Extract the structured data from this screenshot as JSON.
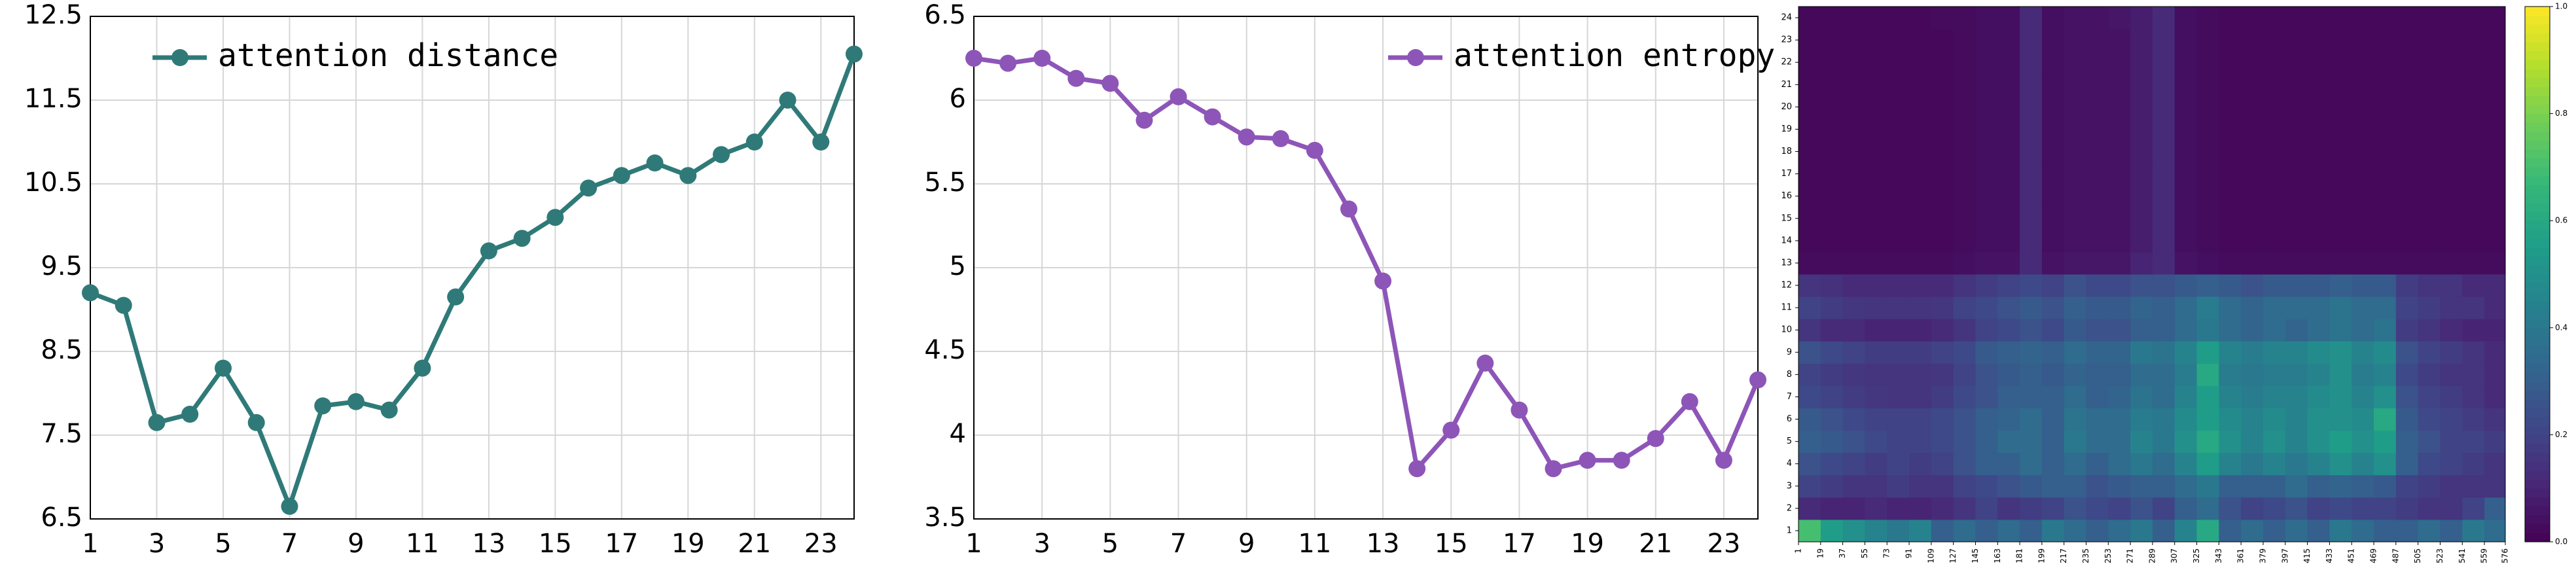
{
  "chart_data": [
    {
      "type": "line",
      "x": [
        1,
        2,
        3,
        4,
        5,
        6,
        7,
        8,
        9,
        10,
        11,
        12,
        13,
        14,
        15,
        16,
        17,
        18,
        19,
        20,
        21,
        22,
        23,
        24
      ],
      "series": [
        {
          "name": "attention distance",
          "color": "#2f7a78",
          "values": [
            9.2,
            9.05,
            7.65,
            7.75,
            8.3,
            7.65,
            6.65,
            7.85,
            7.9,
            7.8,
            8.3,
            9.15,
            9.7,
            9.85,
            10.1,
            10.45,
            10.6,
            10.75,
            10.6,
            10.85,
            11.0,
            11.5,
            11.0,
            12.05
          ]
        }
      ],
      "xlim": [
        1,
        24
      ],
      "xticks": [
        1,
        3,
        5,
        7,
        9,
        11,
        13,
        15,
        17,
        19,
        21,
        23
      ],
      "ylim": [
        6.5,
        12.5
      ],
      "yticks": [
        6.5,
        7.5,
        8.5,
        9.5,
        10.5,
        11.5,
        12.5
      ],
      "grid": true,
      "legend": "upper left"
    },
    {
      "type": "line",
      "x": [
        1,
        2,
        3,
        4,
        5,
        6,
        7,
        8,
        9,
        10,
        11,
        12,
        13,
        14,
        15,
        16,
        17,
        18,
        19,
        20,
        21,
        22,
        23,
        24
      ],
      "series": [
        {
          "name": "attention entropy",
          "color": "#8e55b8",
          "values": [
            6.25,
            6.22,
            6.25,
            6.13,
            6.1,
            5.88,
            6.02,
            5.9,
            5.78,
            5.77,
            5.7,
            5.35,
            4.92,
            3.8,
            4.03,
            4.43,
            4.15,
            3.8,
            3.85,
            3.85,
            3.98,
            4.2,
            3.85,
            4.33
          ]
        }
      ],
      "xlim": [
        1,
        24
      ],
      "xticks": [
        1,
        3,
        5,
        7,
        9,
        11,
        13,
        15,
        17,
        19,
        21,
        23
      ],
      "ylim": [
        3.5,
        6.5
      ],
      "yticks": [
        3.5,
        4.0,
        4.5,
        5.0,
        5.5,
        6.0,
        6.5
      ],
      "grid": true,
      "legend": "upper right"
    },
    {
      "type": "heatmap",
      "colormap": "viridis",
      "clim": [
        0,
        1
      ],
      "cticks": [
        {
          "value": 0,
          "label": "0.0"
        },
        {
          "value": 0.2,
          "label": "0.2"
        },
        {
          "value": 0.4,
          "label": "0.4"
        },
        {
          "value": 0.6,
          "label": "0.6"
        },
        {
          "value": 0.8,
          "label": "0.8"
        },
        {
          "value": 1,
          "label": "1.0"
        }
      ],
      "xlim": [
        1,
        576
      ],
      "xticks": [
        1,
        19,
        37,
        55,
        73,
        91,
        109,
        127,
        145,
        163,
        181,
        199,
        217,
        235,
        253,
        271,
        289,
        307,
        325,
        343,
        361,
        379,
        397,
        415,
        433,
        451,
        469,
        487,
        505,
        523,
        541,
        559,
        576
      ],
      "yticks": [
        1,
        2,
        3,
        4,
        5,
        6,
        7,
        8,
        9,
        10,
        11,
        12,
        13,
        14,
        15,
        16,
        17,
        18,
        19,
        20,
        21,
        22,
        23,
        24
      ],
      "values": [
        [
          0.7,
          0.55,
          0.5,
          0.45,
          0.4,
          0.45,
          0.3,
          0.35,
          0.3,
          0.35,
          0.3,
          0.4,
          0.35,
          0.3,
          0.35,
          0.4,
          0.3,
          0.45,
          0.6,
          0.3,
          0.35,
          0.3,
          0.35,
          0.3,
          0.4,
          0.35,
          0.3,
          0.3,
          0.35,
          0.3,
          0.4,
          0.35
        ],
        [
          0.12,
          0.1,
          0.1,
          0.12,
          0.1,
          0.1,
          0.12,
          0.15,
          0.2,
          0.15,
          0.18,
          0.2,
          0.25,
          0.22,
          0.2,
          0.25,
          0.2,
          0.3,
          0.35,
          0.25,
          0.2,
          0.22,
          0.25,
          0.2,
          0.22,
          0.2,
          0.2,
          0.18,
          0.15,
          0.15,
          0.2,
          0.3
        ],
        [
          0.2,
          0.18,
          0.15,
          0.15,
          0.18,
          0.15,
          0.15,
          0.2,
          0.22,
          0.25,
          0.28,
          0.3,
          0.3,
          0.25,
          0.28,
          0.3,
          0.3,
          0.35,
          0.4,
          0.3,
          0.3,
          0.3,
          0.35,
          0.3,
          0.32,
          0.3,
          0.28,
          0.2,
          0.18,
          0.15,
          0.15,
          0.15
        ],
        [
          0.25,
          0.22,
          0.2,
          0.18,
          0.2,
          0.18,
          0.2,
          0.25,
          0.3,
          0.3,
          0.35,
          0.3,
          0.35,
          0.3,
          0.35,
          0.4,
          0.35,
          0.45,
          0.55,
          0.45,
          0.4,
          0.45,
          0.4,
          0.45,
          0.5,
          0.45,
          0.5,
          0.3,
          0.22,
          0.2,
          0.18,
          0.15
        ],
        [
          0.3,
          0.28,
          0.25,
          0.22,
          0.2,
          0.2,
          0.22,
          0.25,
          0.3,
          0.35,
          0.35,
          0.3,
          0.4,
          0.35,
          0.35,
          0.45,
          0.4,
          0.5,
          0.6,
          0.5,
          0.45,
          0.5,
          0.45,
          0.5,
          0.55,
          0.5,
          0.55,
          0.3,
          0.25,
          0.2,
          0.2,
          0.18
        ],
        [
          0.28,
          0.25,
          0.22,
          0.2,
          0.2,
          0.2,
          0.22,
          0.25,
          0.3,
          0.32,
          0.35,
          0.3,
          0.38,
          0.35,
          0.35,
          0.42,
          0.4,
          0.48,
          0.55,
          0.48,
          0.45,
          0.48,
          0.45,
          0.5,
          0.5,
          0.48,
          0.6,
          0.28,
          0.22,
          0.2,
          0.18,
          0.15
        ],
        [
          0.22,
          0.2,
          0.18,
          0.16,
          0.15,
          0.15,
          0.18,
          0.22,
          0.25,
          0.3,
          0.3,
          0.3,
          0.35,
          0.3,
          0.32,
          0.38,
          0.35,
          0.45,
          0.55,
          0.45,
          0.42,
          0.45,
          0.45,
          0.48,
          0.5,
          0.45,
          0.5,
          0.25,
          0.2,
          0.18,
          0.15,
          0.12
        ],
        [
          0.2,
          0.18,
          0.16,
          0.15,
          0.15,
          0.15,
          0.16,
          0.2,
          0.25,
          0.28,
          0.3,
          0.28,
          0.32,
          0.3,
          0.3,
          0.35,
          0.35,
          0.42,
          0.6,
          0.42,
          0.4,
          0.42,
          0.42,
          0.45,
          0.5,
          0.42,
          0.45,
          0.22,
          0.18,
          0.15,
          0.15,
          0.12
        ],
        [
          0.25,
          0.22,
          0.2,
          0.18,
          0.18,
          0.18,
          0.2,
          0.22,
          0.28,
          0.3,
          0.32,
          0.3,
          0.35,
          0.32,
          0.32,
          0.4,
          0.38,
          0.45,
          0.55,
          0.45,
          0.42,
          0.45,
          0.45,
          0.48,
          0.5,
          0.45,
          0.48,
          0.25,
          0.2,
          0.18,
          0.15,
          0.12
        ],
        [
          0.15,
          0.12,
          0.12,
          0.1,
          0.1,
          0.1,
          0.12,
          0.15,
          0.2,
          0.22,
          0.25,
          0.22,
          0.28,
          0.25,
          0.25,
          0.3,
          0.3,
          0.35,
          0.4,
          0.35,
          0.32,
          0.35,
          0.32,
          0.35,
          0.38,
          0.35,
          0.38,
          0.18,
          0.15,
          0.12,
          0.1,
          0.1
        ],
        [
          0.2,
          0.18,
          0.16,
          0.15,
          0.15,
          0.15,
          0.16,
          0.2,
          0.22,
          0.25,
          0.28,
          0.25,
          0.3,
          0.28,
          0.28,
          0.32,
          0.3,
          0.35,
          0.42,
          0.35,
          0.32,
          0.35,
          0.35,
          0.35,
          0.38,
          0.35,
          0.35,
          0.2,
          0.18,
          0.15,
          0.15,
          0.12
        ],
        [
          0.15,
          0.14,
          0.12,
          0.12,
          0.12,
          0.12,
          0.12,
          0.15,
          0.18,
          0.2,
          0.22,
          0.2,
          0.25,
          0.22,
          0.22,
          0.25,
          0.25,
          0.28,
          0.3,
          0.28,
          0.25,
          0.28,
          0.28,
          0.28,
          0.3,
          0.28,
          0.28,
          0.18,
          0.15,
          0.15,
          0.12,
          0.12
        ],
        [
          0.03,
          0.03,
          0.03,
          0.03,
          0.03,
          0.03,
          0.03,
          0.04,
          0.05,
          0.05,
          0.12,
          0.05,
          0.06,
          0.06,
          0.06,
          0.1,
          0.12,
          0.05,
          0.04,
          0.03,
          0.03,
          0.03,
          0.03,
          0.03,
          0.03,
          0.03,
          0.03,
          0.03,
          0.03,
          0.03,
          0.03,
          0.03
        ],
        [
          0.02,
          0.02,
          0.02,
          0.02,
          0.02,
          0.02,
          0.02,
          0.03,
          0.04,
          0.04,
          0.12,
          0.04,
          0.05,
          0.05,
          0.05,
          0.08,
          0.12,
          0.04,
          0.03,
          0.02,
          0.02,
          0.02,
          0.02,
          0.02,
          0.02,
          0.02,
          0.02,
          0.02,
          0.02,
          0.02,
          0.02,
          0.02
        ],
        [
          0.02,
          0.02,
          0.02,
          0.02,
          0.02,
          0.02,
          0.02,
          0.03,
          0.04,
          0.04,
          0.12,
          0.04,
          0.05,
          0.05,
          0.05,
          0.08,
          0.12,
          0.04,
          0.03,
          0.02,
          0.02,
          0.02,
          0.02,
          0.02,
          0.02,
          0.02,
          0.02,
          0.02,
          0.02,
          0.02,
          0.02,
          0.02
        ],
        [
          0.02,
          0.02,
          0.02,
          0.02,
          0.02,
          0.02,
          0.02,
          0.03,
          0.04,
          0.04,
          0.12,
          0.04,
          0.05,
          0.05,
          0.05,
          0.08,
          0.12,
          0.04,
          0.03,
          0.02,
          0.02,
          0.02,
          0.02,
          0.02,
          0.02,
          0.02,
          0.02,
          0.02,
          0.02,
          0.02,
          0.02,
          0.02
        ],
        [
          0.02,
          0.02,
          0.02,
          0.02,
          0.02,
          0.02,
          0.02,
          0.03,
          0.04,
          0.04,
          0.12,
          0.04,
          0.05,
          0.05,
          0.05,
          0.08,
          0.12,
          0.04,
          0.03,
          0.02,
          0.02,
          0.02,
          0.02,
          0.02,
          0.02,
          0.02,
          0.02,
          0.02,
          0.02,
          0.02,
          0.02,
          0.02
        ],
        [
          0.02,
          0.02,
          0.02,
          0.02,
          0.02,
          0.02,
          0.02,
          0.03,
          0.04,
          0.04,
          0.12,
          0.04,
          0.05,
          0.05,
          0.05,
          0.08,
          0.12,
          0.04,
          0.03,
          0.02,
          0.02,
          0.02,
          0.02,
          0.02,
          0.02,
          0.02,
          0.02,
          0.02,
          0.02,
          0.02,
          0.02,
          0.02
        ],
        [
          0.02,
          0.02,
          0.02,
          0.02,
          0.02,
          0.02,
          0.02,
          0.03,
          0.04,
          0.04,
          0.12,
          0.04,
          0.05,
          0.05,
          0.05,
          0.08,
          0.12,
          0.04,
          0.03,
          0.02,
          0.02,
          0.02,
          0.02,
          0.02,
          0.02,
          0.02,
          0.02,
          0.02,
          0.02,
          0.02,
          0.02,
          0.02
        ],
        [
          0.02,
          0.02,
          0.02,
          0.02,
          0.02,
          0.02,
          0.02,
          0.03,
          0.04,
          0.04,
          0.12,
          0.04,
          0.05,
          0.05,
          0.05,
          0.08,
          0.12,
          0.04,
          0.03,
          0.02,
          0.02,
          0.02,
          0.02,
          0.02,
          0.02,
          0.02,
          0.02,
          0.02,
          0.02,
          0.02,
          0.02,
          0.02
        ],
        [
          0.02,
          0.02,
          0.02,
          0.02,
          0.02,
          0.02,
          0.02,
          0.03,
          0.04,
          0.04,
          0.12,
          0.04,
          0.05,
          0.05,
          0.05,
          0.08,
          0.12,
          0.04,
          0.03,
          0.02,
          0.02,
          0.02,
          0.02,
          0.02,
          0.02,
          0.02,
          0.02,
          0.02,
          0.02,
          0.02,
          0.02,
          0.02
        ],
        [
          0.02,
          0.02,
          0.02,
          0.02,
          0.02,
          0.02,
          0.02,
          0.03,
          0.04,
          0.04,
          0.12,
          0.04,
          0.05,
          0.05,
          0.05,
          0.08,
          0.12,
          0.04,
          0.03,
          0.02,
          0.02,
          0.02,
          0.02,
          0.02,
          0.02,
          0.02,
          0.02,
          0.02,
          0.02,
          0.02,
          0.02,
          0.02
        ],
        [
          0.02,
          0.02,
          0.02,
          0.02,
          0.02,
          0.02,
          0.02,
          0.03,
          0.04,
          0.04,
          0.12,
          0.04,
          0.05,
          0.05,
          0.05,
          0.08,
          0.12,
          0.04,
          0.03,
          0.02,
          0.02,
          0.02,
          0.02,
          0.02,
          0.02,
          0.02,
          0.02,
          0.02,
          0.02,
          0.02,
          0.02,
          0.02
        ],
        [
          0.02,
          0.02,
          0.02,
          0.02,
          0.02,
          0.02,
          0.03,
          0.03,
          0.04,
          0.04,
          0.12,
          0.04,
          0.05,
          0.05,
          0.06,
          0.08,
          0.12,
          0.04,
          0.03,
          0.02,
          0.02,
          0.02,
          0.02,
          0.02,
          0.02,
          0.02,
          0.02,
          0.02,
          0.02,
          0.02,
          0.02,
          0.02
        ]
      ]
    }
  ]
}
